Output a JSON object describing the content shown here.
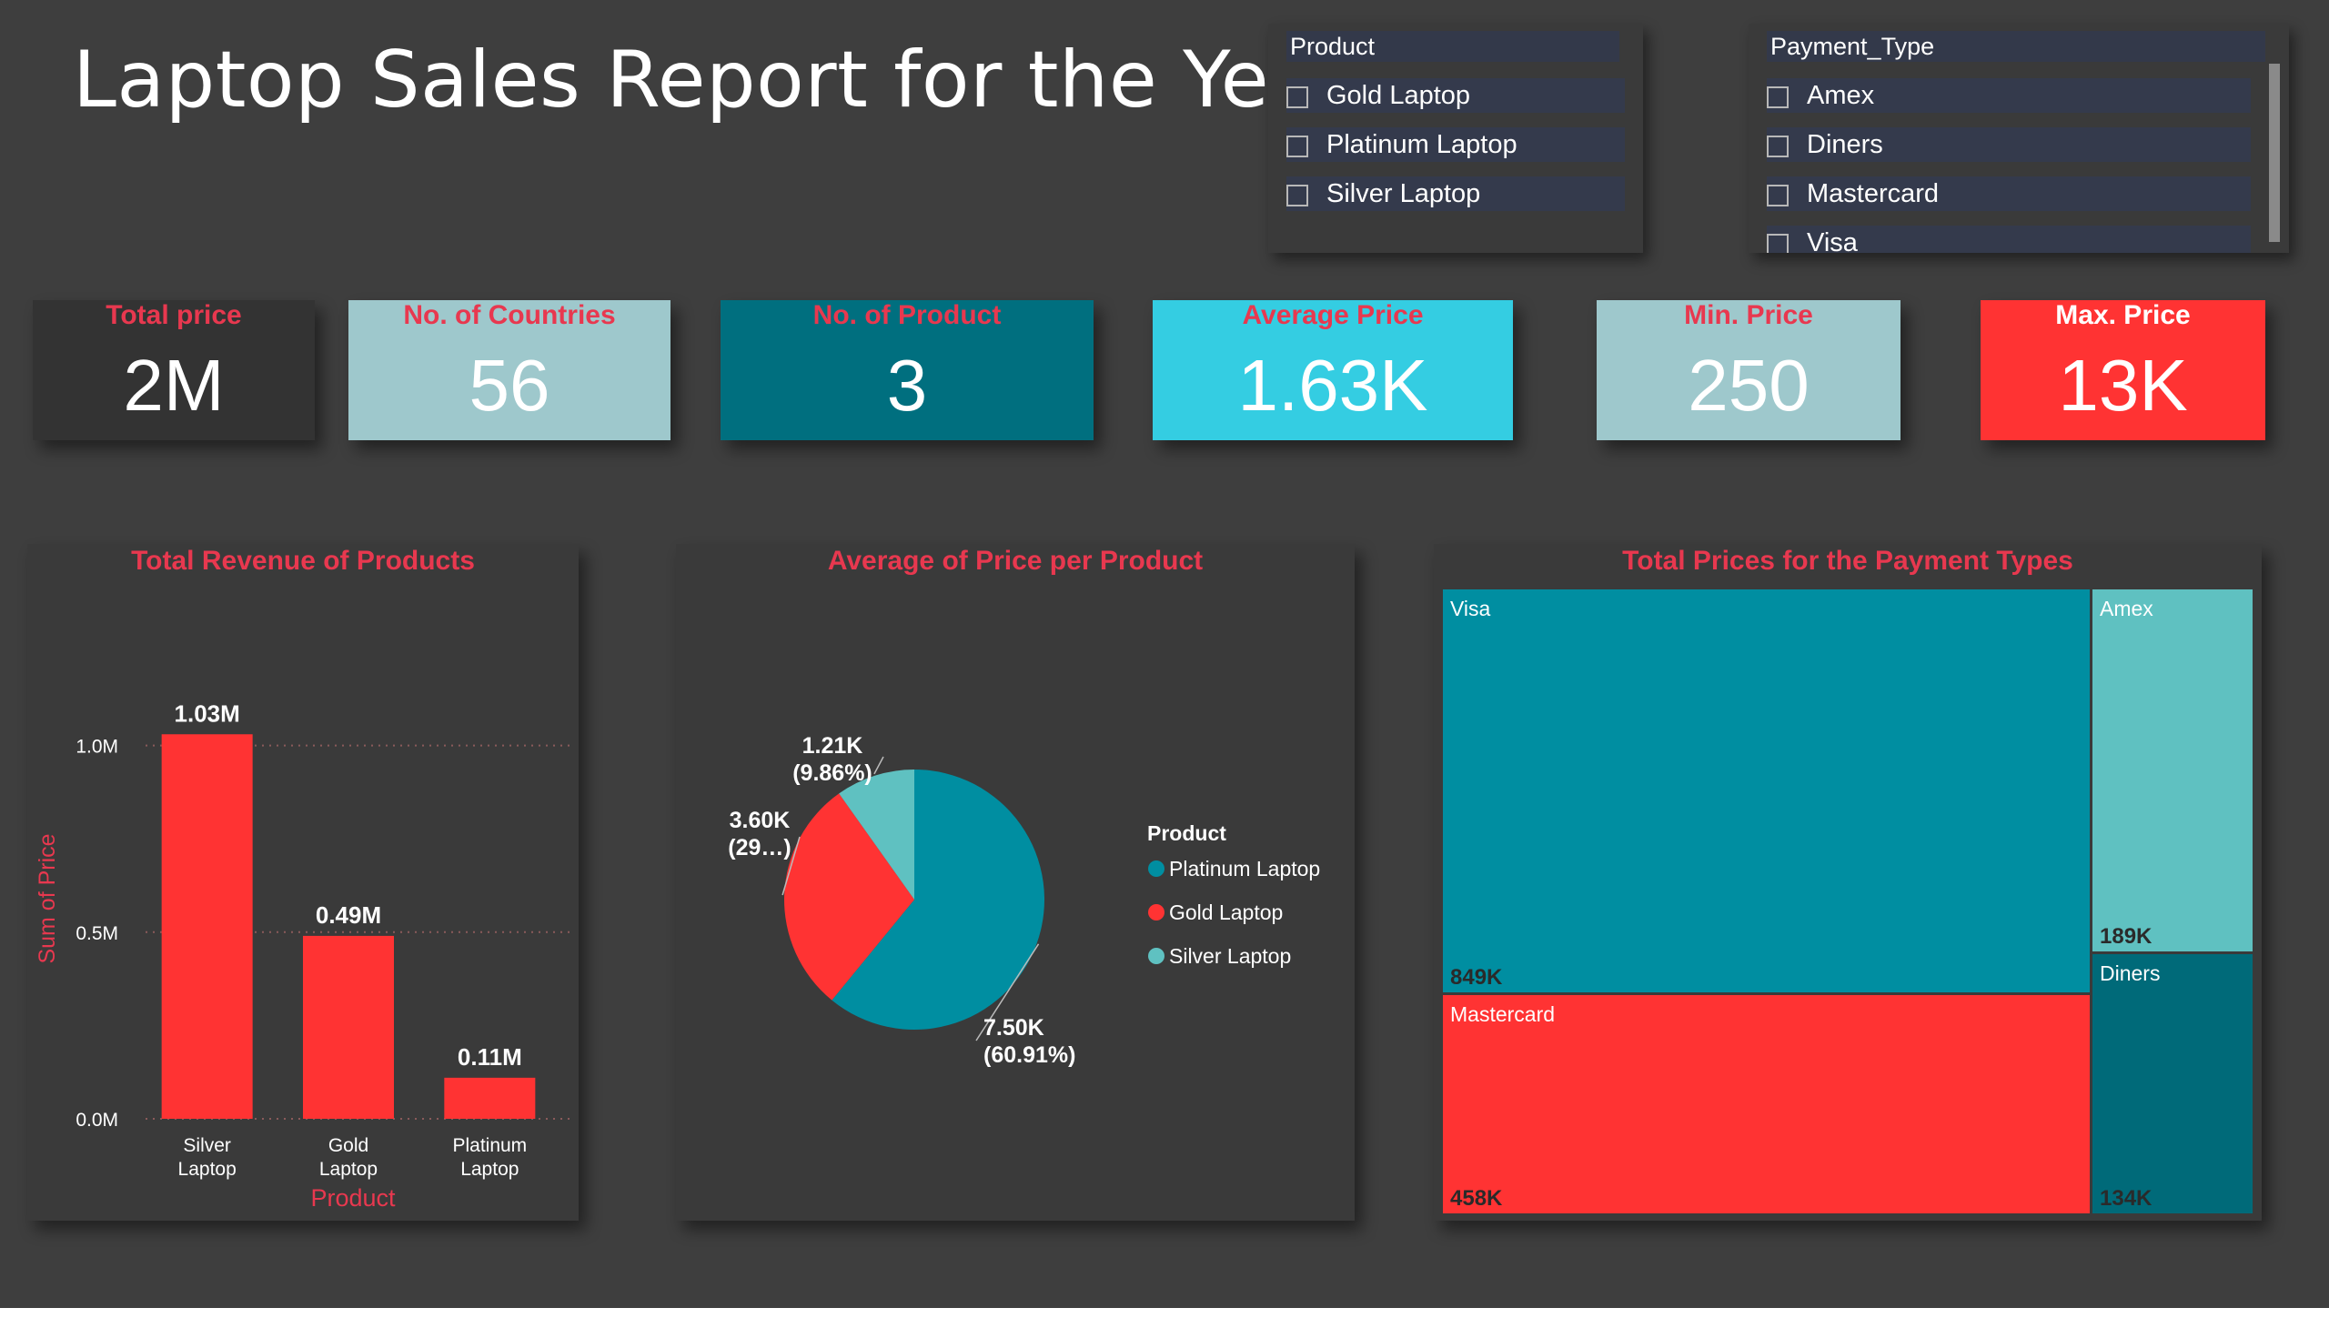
{
  "header": {
    "title": "Laptop Sales Report for the Year"
  },
  "product_slicer": {
    "title": "Product",
    "items": [
      "Gold Laptop",
      "Platinum Laptop",
      "Silver Laptop"
    ]
  },
  "payment_slicer": {
    "title": "Payment_Type",
    "items": [
      "Amex",
      "Diners",
      "Mastercard",
      "Visa"
    ]
  },
  "kpis": [
    {
      "label": "Total price",
      "value": "2M",
      "bg": "#333333"
    },
    {
      "label": "No. of Countries",
      "value": "56",
      "bg": "#9ec8cc"
    },
    {
      "label": "No. of Product",
      "value": "3",
      "bg": "#006f7f"
    },
    {
      "label": "Average Price",
      "value": "1.63K",
      "bg": "#34cde2"
    },
    {
      "label": "Min. Price",
      "value": "250",
      "bg": "#9ec8cc"
    },
    {
      "label": "Max. Price",
      "value": "13K",
      "bg": "#ff3333",
      "label_color": "#ffffff"
    }
  ],
  "colors": {
    "accent_red": "#ff3333",
    "title_red": "#e8384f",
    "teal": "#008ea1",
    "light_teal": "#5fc1c1",
    "dark_teal": "#006a79"
  },
  "chart_data": [
    {
      "type": "bar",
      "title": "Total Revenue of Products",
      "xlabel": "Product",
      "ylabel": "Sum of Price",
      "categories": [
        "Silver Laptop",
        "Gold Laptop",
        "Platinum Laptop"
      ],
      "values": [
        1.03,
        0.49,
        0.11
      ],
      "value_labels": [
        "1.03M",
        "0.49M",
        "0.11M"
      ],
      "yticks": [
        "0.0M",
        "0.5M",
        "1.0M"
      ],
      "ylim": [
        0,
        1.15
      ],
      "grid": true
    },
    {
      "type": "pie",
      "title": "Average of Price per Product",
      "legend_title": "Product",
      "legend_position": "right",
      "slices": [
        {
          "name": "Platinum Laptop",
          "value": 7.5,
          "label": "7.50K",
          "pct": "(60.91%)",
          "color": "#008ea1"
        },
        {
          "name": "Gold Laptop",
          "value": 3.6,
          "label": "3.60K",
          "pct": "(29…)",
          "color": "#ff3333"
        },
        {
          "name": "Silver Laptop",
          "value": 1.21,
          "label": "1.21K",
          "pct": "(9.86%)",
          "color": "#5fc1c1"
        }
      ]
    },
    {
      "type": "treemap",
      "title": "Total Prices for the Payment Types",
      "items": [
        {
          "name": "Visa",
          "value": 849,
          "label": "849K",
          "color": "#008ea1"
        },
        {
          "name": "Mastercard",
          "value": 458,
          "label": "458K",
          "color": "#ff3333"
        },
        {
          "name": "Amex",
          "value": 189,
          "label": "189K",
          "color": "#5fc1c1"
        },
        {
          "name": "Diners",
          "value": 134,
          "label": "134K",
          "color": "#006a79"
        }
      ]
    }
  ]
}
